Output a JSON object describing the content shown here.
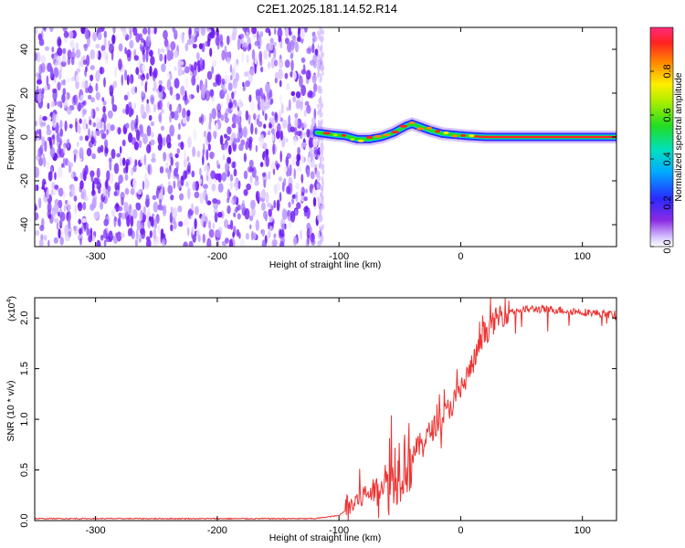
{
  "title": "C2E1.2025.181.14.52.R14",
  "colors": {
    "snr_line": "#ee3333",
    "spectrogram_noise": "#7a22ff",
    "axis": "#000000"
  },
  "chart_data": [
    {
      "type": "heatmap",
      "xlabel": "Height of straight line (km)",
      "ylabel": "Frequency (Hz)",
      "xlim": [
        -350,
        128
      ],
      "ylim": [
        -50,
        50
      ],
      "x_ticks": [
        -300,
        -200,
        -100,
        0,
        100
      ],
      "y_ticks": [
        -40,
        -20,
        0,
        20,
        40
      ],
      "colorbar": {
        "label": "Normalized spectral amplitude",
        "range": [
          0,
          1
        ],
        "ticks": [
          "0.0",
          "0.2",
          "0.4",
          "0.6",
          "0.8"
        ],
        "tick_values": [
          0,
          0.2,
          0.4,
          0.6,
          0.8
        ],
        "colormap": "rainbow"
      },
      "noise_region_x": [
        -350,
        -115
      ],
      "signal_track": {
        "x": [
          -118,
          -105,
          -95,
          -85,
          -75,
          -65,
          -55,
          -45,
          -40,
          -35,
          -25,
          -15,
          -5,
          5,
          20,
          60,
          128
        ],
        "frequency": [
          2,
          1,
          0.5,
          -1,
          -1,
          0,
          2,
          5,
          6,
          5,
          3,
          1.5,
          1,
          0.5,
          0,
          0,
          0
        ]
      }
    },
    {
      "type": "line",
      "xlabel": "Height of straight line (km)",
      "ylabel": "SNR (10 * v/v)",
      "y_multiplier": "(x10",
      "y_multiplier_exp": "4",
      "y_multiplier_close": ")",
      "xlim": [
        -350,
        128
      ],
      "ylim": [
        0,
        2.2
      ],
      "x_ticks": [
        -300,
        -200,
        -100,
        0,
        100
      ],
      "y_ticks": [
        "0.0",
        "0.5",
        "1.0",
        "1.5",
        "2.0"
      ],
      "y_tick_values": [
        0,
        0.5,
        1.0,
        1.5,
        2.0
      ],
      "series": [
        {
          "x": [
            -350,
            -120,
            -100,
            -90,
            -80,
            -70,
            -60,
            -50,
            -40,
            -30,
            -20,
            -10,
            0,
            10,
            20,
            30,
            40,
            60,
            80,
            100,
            128
          ],
          "y": [
            0.02,
            0.02,
            0.05,
            0.15,
            0.25,
            0.3,
            0.4,
            0.55,
            0.65,
            0.8,
            0.95,
            1.1,
            1.3,
            1.55,
            1.85,
            2.0,
            2.07,
            2.09,
            2.08,
            2.06,
            2.03
          ]
        }
      ]
    }
  ]
}
